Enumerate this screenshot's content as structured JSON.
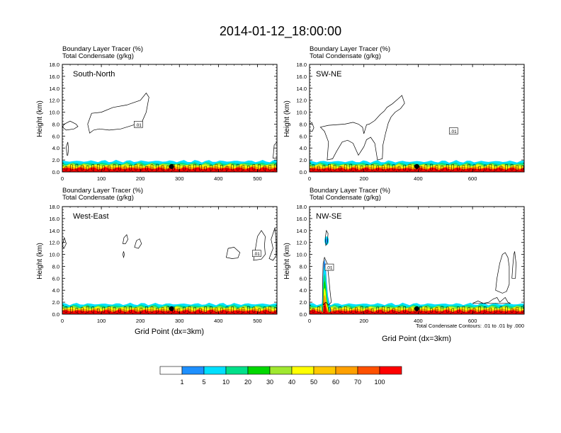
{
  "title": "2014-01-12_18:00:00",
  "colors": {
    "scale": [
      "#ffffff",
      "#1e90ff",
      "#00e0ff",
      "#00e08a",
      "#00d800",
      "#a0e830",
      "#ffff00",
      "#ffc800",
      "#ffa000",
      "#ff5000",
      "#ff0000"
    ],
    "contour": "#000000"
  },
  "chart_data": [
    {
      "type": "contour",
      "panel_label": "South-North",
      "subtitle_line1": "Boundary Layer Tracer   (%)",
      "subtitle_line2": "Total Condensate   (g/kg)",
      "ylabel": "Height (km)",
      "xlabel": "",
      "xlim": [
        0,
        550
      ],
      "ylim": [
        0,
        18
      ],
      "xticks": [
        0,
        100,
        200,
        300,
        400,
        500
      ],
      "yticks": [
        "0.0",
        "2.0",
        "4.0",
        "6.0",
        "8.0",
        "10.0",
        "12.0",
        "14.0",
        "16.0",
        "18.0"
      ],
      "contour_label": ".01",
      "marker_x": 280
    },
    {
      "type": "contour",
      "panel_label": "SW-NE",
      "subtitle_line1": "Boundary Layer Tracer   (%)",
      "subtitle_line2": "Total Condensate   (g/kg)",
      "ylabel": "Height (km)",
      "xlabel": "",
      "xlim": [
        0,
        790
      ],
      "ylim": [
        0,
        18
      ],
      "xticks": [
        0,
        200,
        400,
        600
      ],
      "yticks": [
        "0.0",
        "2.0",
        "4.0",
        "6.0",
        "8.0",
        "10.0",
        "12.0",
        "14.0",
        "16.0",
        "18.0"
      ],
      "contour_label": ".01",
      "marker_x": 395
    },
    {
      "type": "contour",
      "panel_label": "West-East",
      "subtitle_line1": "Boundary Layer Tracer   (%)",
      "subtitle_line2": "Total Condensate   (g/kg)",
      "ylabel": "Height (km)",
      "xlabel": "Grid Point (dx=3km)",
      "xlim": [
        0,
        550
      ],
      "ylim": [
        0,
        18
      ],
      "xticks": [
        0,
        100,
        200,
        300,
        400,
        500
      ],
      "yticks": [
        "0.0",
        "2.0",
        "4.0",
        "6.0",
        "8.0",
        "10.0",
        "12.0",
        "14.0",
        "16.0",
        "18.0"
      ],
      "contour_label": ".01",
      "marker_x": 280
    },
    {
      "type": "contour",
      "panel_label": "NW-SE",
      "subtitle_line1": "Boundary Layer Tracer   (%)",
      "subtitle_line2": "Total Condensate   (g/kg)",
      "ylabel": "Height (km)",
      "xlabel": "Grid Point (dx=3km)",
      "xlim": [
        0,
        790
      ],
      "ylim": [
        0,
        18
      ],
      "xticks": [
        0,
        200,
        400,
        600
      ],
      "yticks": [
        "0.0",
        "2.0",
        "4.0",
        "6.0",
        "8.0",
        "10.0",
        "12.0",
        "14.0",
        "16.0",
        "18.0"
      ],
      "contour_label": ".01",
      "marker_x": 395,
      "footnote": "Total Condensate Contours: .01 to .01 by .000"
    }
  ],
  "colorbar": {
    "labels": [
      "1",
      "5",
      "10",
      "20",
      "30",
      "40",
      "50",
      "60",
      "70",
      "100"
    ]
  }
}
